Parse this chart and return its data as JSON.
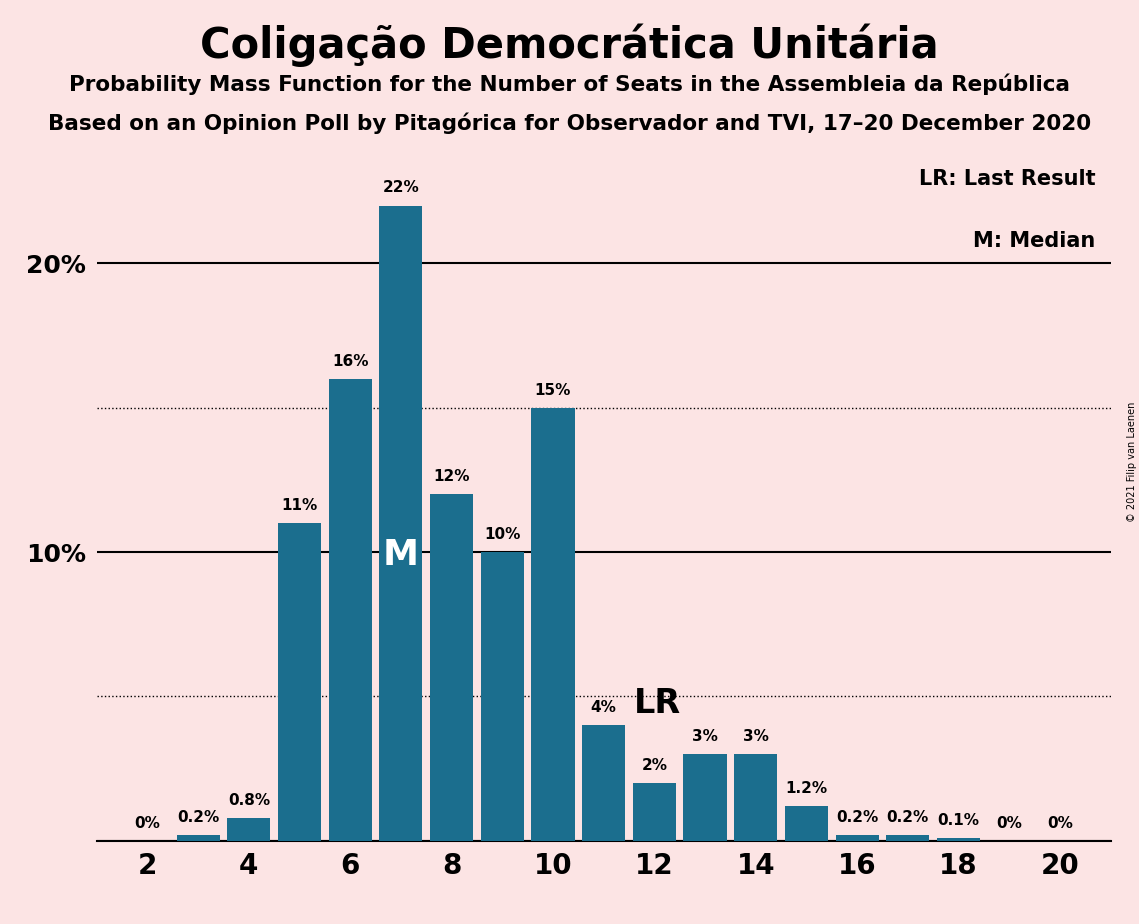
{
  "title": "Coligação Democrática Unitária",
  "subtitle1": "Probability Mass Function for the Number of Seats in the Assembleia da República",
  "subtitle2": "Based on an Opinion Poll by Pitagórica for Observador and TVI, 17–20 December 2020",
  "copyright": "© 2021 Filip van Laenen",
  "legend_lr": "LR: Last Result",
  "legend_m": "M: Median",
  "bar_color": "#1b6e8e",
  "background_color": "#fce4e4",
  "seats": [
    2,
    3,
    4,
    5,
    6,
    7,
    8,
    9,
    10,
    11,
    12,
    13,
    14,
    15,
    16,
    17,
    18,
    19,
    20
  ],
  "probabilities": [
    0.0,
    0.2,
    0.8,
    11.0,
    16.0,
    22.0,
    12.0,
    10.0,
    15.0,
    4.0,
    2.0,
    3.0,
    3.0,
    1.2,
    0.2,
    0.2,
    0.1,
    0.0,
    0.0
  ],
  "labels": [
    "0%",
    "0.2%",
    "0.8%",
    "11%",
    "16%",
    "22%",
    "12%",
    "10%",
    "15%",
    "4%",
    "2%",
    "3%",
    "3%",
    "1.2%",
    "0.2%",
    "0.2%",
    "0.1%",
    "0%",
    "0%"
  ],
  "median_seat": 7,
  "lr_seat": 11,
  "solid_yticks": [
    0,
    10,
    20
  ],
  "solid_ytick_labels": {
    "0": "",
    "10": "10%",
    "20": "20%"
  },
  "dotted_yticks": [
    5,
    15
  ],
  "xlim": [
    1,
    21
  ],
  "ylim": [
    0,
    24
  ]
}
